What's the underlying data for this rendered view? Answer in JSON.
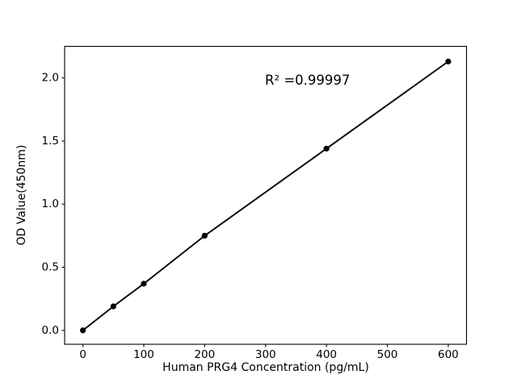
{
  "figure": {
    "background_color": "#ffffff",
    "foreground_color": "#000000"
  },
  "chart_data": {
    "type": "line",
    "marker": "o",
    "x": [
      0,
      50,
      100,
      200,
      400,
      600
    ],
    "y": [
      0.0,
      0.19,
      0.37,
      0.75,
      1.44,
      2.13
    ],
    "xlabel": "Human PRG4 Concentration (pg/mL)",
    "ylabel": "OD Value(450nm)",
    "x_ticks": [
      0,
      100,
      200,
      300,
      400,
      500,
      600
    ],
    "y_ticks": [
      0.0,
      0.5,
      1.0,
      1.5,
      2.0
    ],
    "xlim": [
      -30,
      630
    ],
    "ylim": [
      -0.11,
      2.25
    ],
    "grid": false,
    "legend": null,
    "annotation": {
      "text": "R² =0.99997",
      "r_squared": 0.99997
    },
    "line_color": "#000000",
    "marker_color": "#000000",
    "axis_color": "#000000"
  }
}
